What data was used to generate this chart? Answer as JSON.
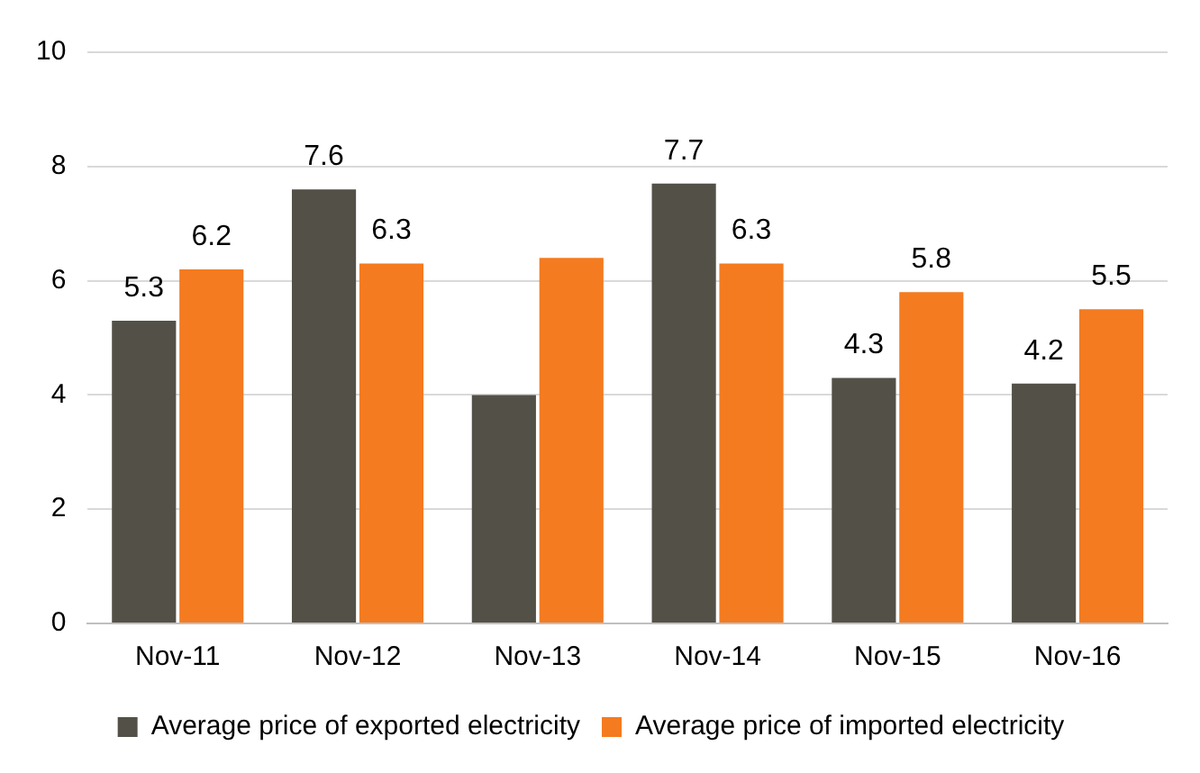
{
  "chart_data": {
    "type": "bar",
    "categories": [
      "Nov-11",
      "Nov-12",
      "Nov-13",
      "Nov-14",
      "Nov-15",
      "Nov-16"
    ],
    "series": [
      {
        "name": "Average price of exported electricity",
        "color": "#535147",
        "values": [
          5.3,
          7.6,
          4.0,
          7.7,
          4.3,
          4.2
        ],
        "value_labels": [
          "5.3",
          "7.6",
          null,
          "7.7",
          "4.3",
          "4.2"
        ]
      },
      {
        "name": "Average price of imported electricity",
        "color": "#f47b20",
        "values": [
          6.2,
          6.3,
          6.4,
          6.3,
          5.8,
          5.5
        ],
        "value_labels": [
          "6.2",
          "6.3",
          null,
          "6.3",
          "5.8",
          "5.5"
        ]
      }
    ],
    "ylim": [
      0,
      10
    ],
    "yticks": [
      0,
      2,
      4,
      6,
      8,
      10
    ],
    "grid": "y",
    "legend": "bottom"
  }
}
